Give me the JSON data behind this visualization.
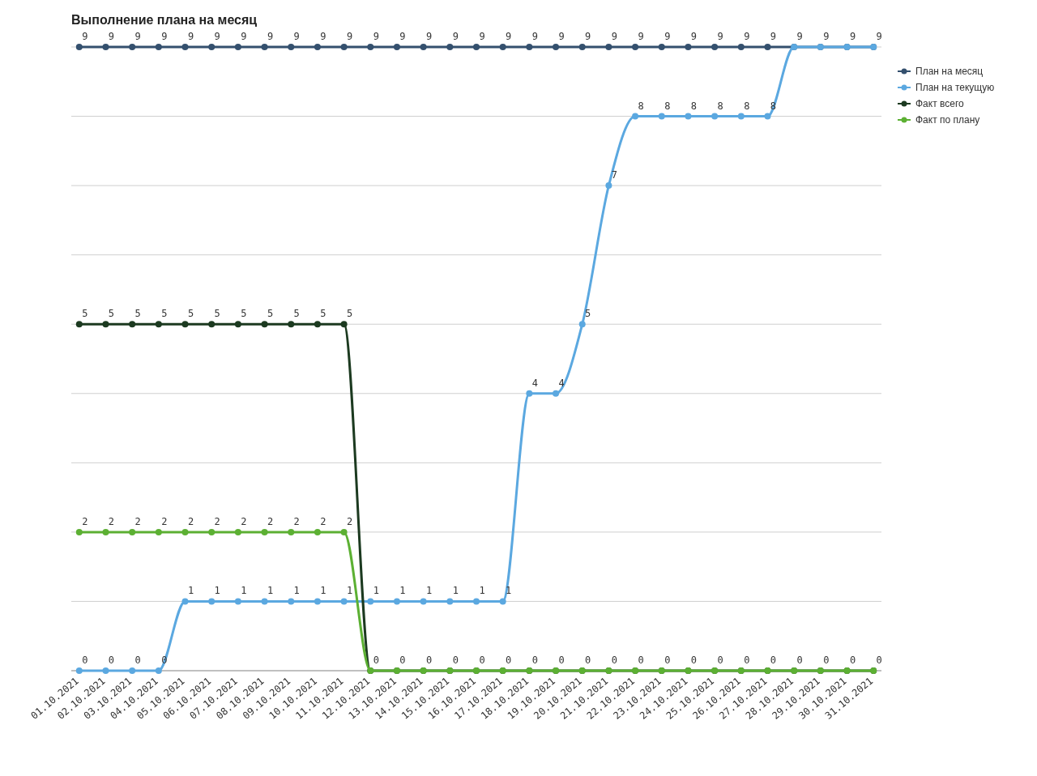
{
  "chart_data": {
    "type": "line",
    "title": "Выполнение плана на месяц",
    "categories": [
      "01.10.2021",
      "02.10.2021",
      "03.10.2021",
      "04.10.2021",
      "05.10.2021",
      "06.10.2021",
      "07.10.2021",
      "08.10.2021",
      "09.10.2021",
      "10.10.2021",
      "11.10.2021",
      "12.10.2021",
      "13.10.2021",
      "14.10.2021",
      "15.10.2021",
      "16.10.2021",
      "17.10.2021",
      "18.10.2021",
      "19.10.2021",
      "20.10.2021",
      "21.10.2021",
      "22.10.2021",
      "23.10.2021",
      "24.10.2021",
      "25.10.2021",
      "26.10.2021",
      "27.10.2021",
      "28.10.2021",
      "29.10.2021",
      "30.10.2021",
      "31.10.2021"
    ],
    "series": [
      {
        "name": "План на месяц",
        "color": "#34506e",
        "values": [
          9,
          9,
          9,
          9,
          9,
          9,
          9,
          9,
          9,
          9,
          9,
          9,
          9,
          9,
          9,
          9,
          9,
          9,
          9,
          9,
          9,
          9,
          9,
          9,
          9,
          9,
          9,
          9,
          9,
          9,
          9
        ]
      },
      {
        "name": "План на текущую",
        "color": "#5ba8e0",
        "values": [
          0,
          0,
          0,
          0,
          1,
          1,
          1,
          1,
          1,
          1,
          1,
          1,
          1,
          1,
          1,
          1,
          1,
          4,
          4,
          5,
          7,
          8,
          8,
          8,
          8,
          8,
          8,
          9,
          9,
          9,
          9
        ],
        "value_labels": [
          "0",
          "0",
          "0",
          "0",
          "1",
          "1",
          "1",
          "1",
          "1",
          "1",
          "1",
          "1",
          "1",
          "1",
          "1",
          "1",
          "1",
          "4",
          "4",
          "5",
          "7",
          "8",
          "8",
          "8",
          "8",
          "8",
          "8",
          null,
          null,
          null,
          null
        ]
      },
      {
        "name": "Факт всего",
        "color": "#1c3a20",
        "values": [
          5,
          5,
          5,
          5,
          5,
          5,
          5,
          5,
          5,
          5,
          5,
          0,
          0,
          0,
          0,
          0,
          0,
          0,
          0,
          0,
          0,
          0,
          0,
          0,
          0,
          0,
          0,
          0,
          0,
          0,
          0
        ]
      },
      {
        "name": "Факт по плану",
        "color": "#5cb033",
        "values": [
          2,
          2,
          2,
          2,
          2,
          2,
          2,
          2,
          2,
          2,
          2,
          0,
          0,
          0,
          0,
          0,
          0,
          0,
          0,
          0,
          0,
          0,
          0,
          0,
          0,
          0,
          0,
          0,
          0,
          0,
          0
        ],
        "value_labels": [
          "2",
          "2",
          "2",
          "2",
          "2",
          "2",
          "2",
          "2",
          "2",
          "2",
          "2",
          null,
          null,
          null,
          null,
          null,
          null,
          null,
          null,
          null,
          null,
          null,
          null,
          null,
          null,
          null,
          null,
          null,
          null,
          null,
          null
        ]
      }
    ],
    "ylim": [
      0,
      9
    ],
    "yticks": [
      0,
      1,
      2,
      3,
      4,
      5,
      6,
      7,
      8,
      9
    ],
    "tick_labels": "x",
    "grid": "y",
    "legend": "top right",
    "marker": "circle",
    "line_style": "solid",
    "data_labels": true
  }
}
